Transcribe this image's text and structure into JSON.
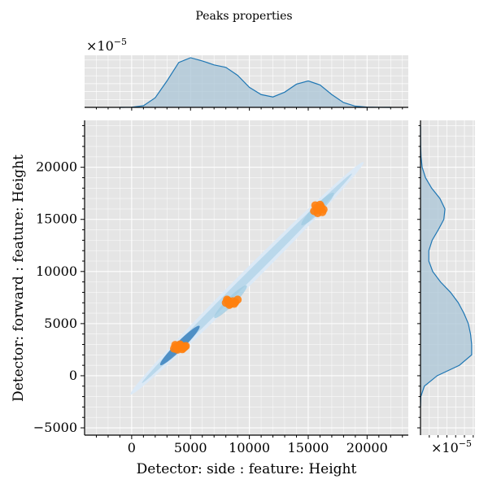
{
  "figure": {
    "title": "Peaks properties",
    "top_scale_label": "×10",
    "top_scale_exp": "−5",
    "right_scale_label": "×10",
    "right_scale_exp": "−5"
  },
  "colors": {
    "panel_bg": "#e5e5e5",
    "grid": "#ffffff",
    "kde_line": "#1f77b4",
    "kde_fill": "#aac4d6",
    "points": "#ff7f0e",
    "density_light": "#dbe9f6",
    "density_mid": "#9ecae1",
    "density_dark": "#2171b5"
  },
  "chart_data": [
    {
      "type": "scatter",
      "role": "joint",
      "xlabel": "Detector: side : feature: Height",
      "ylabel": "Detector: forward : feature: Height",
      "xlim": [
        -4000,
        23500
      ],
      "ylim": [
        -5700,
        24500
      ],
      "xticks": [
        0,
        5000,
        10000,
        15000,
        20000
      ],
      "xtick_labels": [
        "0",
        "5000",
        "10000",
        "15000",
        "20000"
      ],
      "yticks": [
        -5000,
        0,
        5000,
        10000,
        15000,
        20000
      ],
      "ytick_labels": [
        "−5000",
        "0",
        "5000",
        "10000",
        "15000",
        "20000"
      ],
      "grid": true,
      "density_band": {
        "x": [
          -100,
          19700
        ],
        "y": [
          -1800,
          20500
        ]
      },
      "density_cores": [
        {
          "x": 4100,
          "y": 2900,
          "level": "dark"
        },
        {
          "x": 8400,
          "y": 7100,
          "level": "mid"
        },
        {
          "x": 15800,
          "y": 16000,
          "level": "mid"
        }
      ],
      "points": [
        {
          "x": 3600,
          "y": 2600
        },
        {
          "x": 3800,
          "y": 2800
        },
        {
          "x": 4000,
          "y": 2700
        },
        {
          "x": 4200,
          "y": 2900
        },
        {
          "x": 4400,
          "y": 2650
        },
        {
          "x": 4600,
          "y": 2850
        },
        {
          "x": 3900,
          "y": 2500
        },
        {
          "x": 4300,
          "y": 2550
        },
        {
          "x": 4100,
          "y": 3000
        },
        {
          "x": 4500,
          "y": 2750
        },
        {
          "x": 3700,
          "y": 2950
        },
        {
          "x": 8000,
          "y": 7000
        },
        {
          "x": 8200,
          "y": 7200
        },
        {
          "x": 8400,
          "y": 6900
        },
        {
          "x": 8600,
          "y": 7150
        },
        {
          "x": 8800,
          "y": 7050
        },
        {
          "x": 9000,
          "y": 7300
        },
        {
          "x": 8300,
          "y": 6800
        },
        {
          "x": 8700,
          "y": 6900
        },
        {
          "x": 8100,
          "y": 7300
        },
        {
          "x": 15500,
          "y": 15800
        },
        {
          "x": 15700,
          "y": 16100
        },
        {
          "x": 15900,
          "y": 15900
        },
        {
          "x": 16100,
          "y": 16200
        },
        {
          "x": 16300,
          "y": 15950
        },
        {
          "x": 15600,
          "y": 16350
        },
        {
          "x": 16000,
          "y": 16400
        },
        {
          "x": 16200,
          "y": 15700
        },
        {
          "x": 15800,
          "y": 15600
        }
      ]
    },
    {
      "type": "area",
      "role": "x-marginal-kde",
      "scale_label": "×10^−5",
      "x": [
        -1000,
        0,
        1000,
        2000,
        3000,
        4000,
        5000,
        6000,
        7000,
        8000,
        9000,
        10000,
        11000,
        12000,
        13000,
        14000,
        15000,
        16000,
        17000,
        18000,
        19000,
        20000,
        21000,
        22000
      ],
      "values": [
        0.001,
        0.02,
        0.2,
        1.2,
        3.3,
        5.6,
        6.2,
        5.8,
        5.3,
        5.0,
        4.0,
        2.5,
        1.6,
        1.3,
        1.9,
        2.9,
        3.3,
        2.8,
        1.6,
        0.6,
        0.15,
        0.03,
        0.005,
        0.0
      ]
    },
    {
      "type": "area",
      "role": "y-marginal-kde",
      "scale_label": "×10^−5",
      "y": [
        -3000,
        -2000,
        -1000,
        0,
        1000,
        2000,
        3000,
        4000,
        5000,
        6000,
        7000,
        8000,
        9000,
        10000,
        11000,
        12000,
        13000,
        14000,
        15000,
        16000,
        17000,
        18000,
        19000,
        20000,
        21000,
        22000,
        23000,
        24000
      ],
      "values": [
        0.001,
        0.03,
        0.35,
        1.5,
        3.5,
        4.6,
        4.6,
        4.5,
        4.3,
        3.9,
        3.4,
        2.7,
        1.8,
        1.1,
        0.75,
        0.75,
        1.05,
        1.6,
        2.1,
        2.2,
        1.75,
        1.0,
        0.45,
        0.15,
        0.05,
        0.015,
        0.005,
        0.001
      ]
    }
  ]
}
